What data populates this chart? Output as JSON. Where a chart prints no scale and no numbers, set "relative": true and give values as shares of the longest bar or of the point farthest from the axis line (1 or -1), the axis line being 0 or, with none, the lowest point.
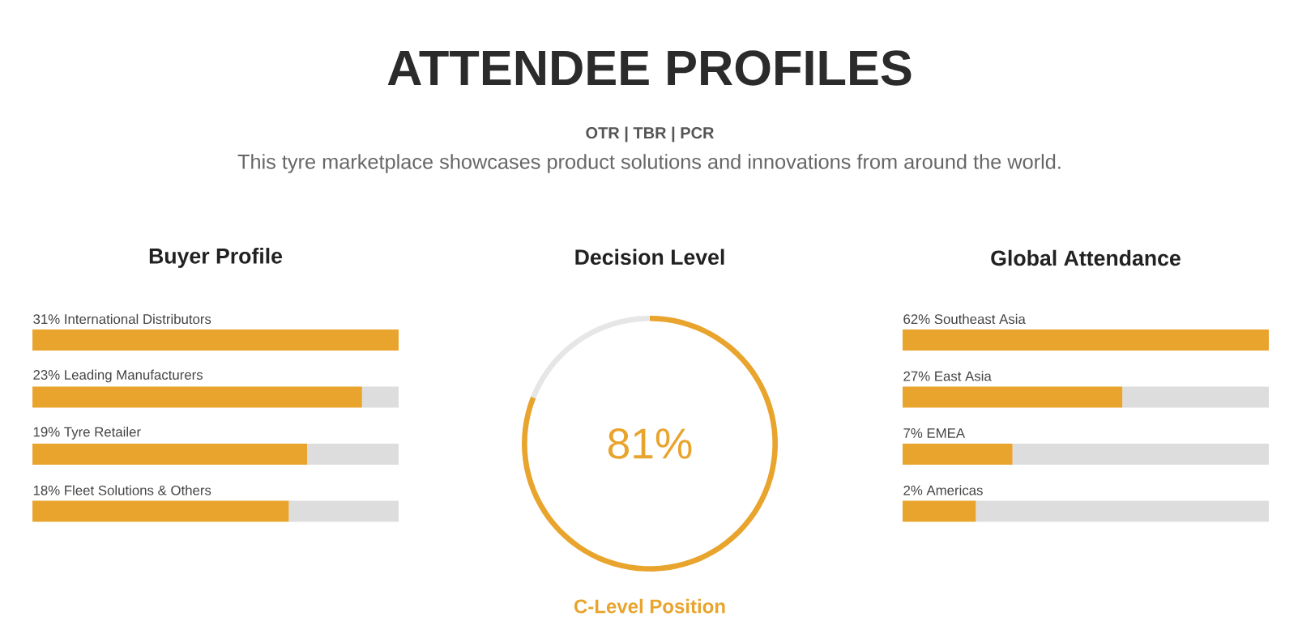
{
  "chart_data": [
    {
      "type": "other",
      "title": "ATTENDEE PROFILES",
      "subtitle": "OTR | TBR | PCR",
      "annotations": [
        "This tyre marketplace showcases product solutions and innovations from around the world."
      ]
    },
    {
      "type": "bar",
      "title": "Buyer Profile",
      "orientation": "horizontal",
      "stacked": true,
      "relative": true,
      "categories": [
        "31% International Distributors",
        "23% Leading Manufacturers",
        "19% Tyre Retailer",
        "18% Fleet Solutions & Others"
      ],
      "series": [
        {
          "color": "#e8a42c",
          "values": [
            1,
            0.9,
            0.75,
            0.7
          ]
        },
        {
          "color": "#dddddd",
          "values": [
            0,
            0.1,
            0.25,
            0.3
          ]
        }
      ]
    },
    {
      "type": "donut",
      "title": "Decision Level",
      "categories": [
        "C-Level Position",
        null
      ],
      "values": [
        81,
        19
      ],
      "colors": [
        "#e8a42c",
        "#e6e6e6"
      ],
      "value_labels": [
        "81%",
        null
      ]
    },
    {
      "type": "bar",
      "title": "Global Attendance",
      "orientation": "horizontal",
      "stacked": true,
      "relative": true,
      "categories": [
        "62% Southeast Asia",
        "27% East Asia",
        "7% EMEA",
        "2% Americas"
      ],
      "series": [
        {
          "color": "#e8a42c",
          "values": [
            1,
            0.6,
            0.3,
            0.2
          ]
        },
        {
          "color": "#dddddd",
          "values": [
            0,
            0.4,
            0.7,
            0.8
          ]
        }
      ]
    }
  ]
}
